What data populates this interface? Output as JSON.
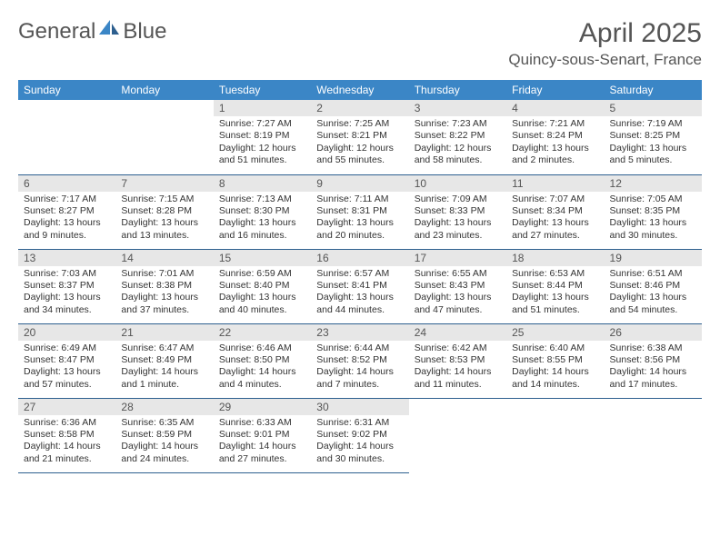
{
  "logo": {
    "word1": "General",
    "word2": "Blue",
    "icon_color": "#3b86c6"
  },
  "title": "April 2025",
  "location": "Quincy-sous-Senart, France",
  "colors": {
    "header_bg": "#3b86c6",
    "header_text": "#ffffff",
    "daynum_bg": "#e7e7e7",
    "border": "#2d5f8f",
    "text": "#333333"
  },
  "weekdays": [
    "Sunday",
    "Monday",
    "Tuesday",
    "Wednesday",
    "Thursday",
    "Friday",
    "Saturday"
  ],
  "weeks": [
    [
      null,
      null,
      {
        "n": "1",
        "sr": "7:27 AM",
        "ss": "8:19 PM",
        "dl": "12 hours and 51 minutes."
      },
      {
        "n": "2",
        "sr": "7:25 AM",
        "ss": "8:21 PM",
        "dl": "12 hours and 55 minutes."
      },
      {
        "n": "3",
        "sr": "7:23 AM",
        "ss": "8:22 PM",
        "dl": "12 hours and 58 minutes."
      },
      {
        "n": "4",
        "sr": "7:21 AM",
        "ss": "8:24 PM",
        "dl": "13 hours and 2 minutes."
      },
      {
        "n": "5",
        "sr": "7:19 AM",
        "ss": "8:25 PM",
        "dl": "13 hours and 5 minutes."
      }
    ],
    [
      {
        "n": "6",
        "sr": "7:17 AM",
        "ss": "8:27 PM",
        "dl": "13 hours and 9 minutes."
      },
      {
        "n": "7",
        "sr": "7:15 AM",
        "ss": "8:28 PM",
        "dl": "13 hours and 13 minutes."
      },
      {
        "n": "8",
        "sr": "7:13 AM",
        "ss": "8:30 PM",
        "dl": "13 hours and 16 minutes."
      },
      {
        "n": "9",
        "sr": "7:11 AM",
        "ss": "8:31 PM",
        "dl": "13 hours and 20 minutes."
      },
      {
        "n": "10",
        "sr": "7:09 AM",
        "ss": "8:33 PM",
        "dl": "13 hours and 23 minutes."
      },
      {
        "n": "11",
        "sr": "7:07 AM",
        "ss": "8:34 PM",
        "dl": "13 hours and 27 minutes."
      },
      {
        "n": "12",
        "sr": "7:05 AM",
        "ss": "8:35 PM",
        "dl": "13 hours and 30 minutes."
      }
    ],
    [
      {
        "n": "13",
        "sr": "7:03 AM",
        "ss": "8:37 PM",
        "dl": "13 hours and 34 minutes."
      },
      {
        "n": "14",
        "sr": "7:01 AM",
        "ss": "8:38 PM",
        "dl": "13 hours and 37 minutes."
      },
      {
        "n": "15",
        "sr": "6:59 AM",
        "ss": "8:40 PM",
        "dl": "13 hours and 40 minutes."
      },
      {
        "n": "16",
        "sr": "6:57 AM",
        "ss": "8:41 PM",
        "dl": "13 hours and 44 minutes."
      },
      {
        "n": "17",
        "sr": "6:55 AM",
        "ss": "8:43 PM",
        "dl": "13 hours and 47 minutes."
      },
      {
        "n": "18",
        "sr": "6:53 AM",
        "ss": "8:44 PM",
        "dl": "13 hours and 51 minutes."
      },
      {
        "n": "19",
        "sr": "6:51 AM",
        "ss": "8:46 PM",
        "dl": "13 hours and 54 minutes."
      }
    ],
    [
      {
        "n": "20",
        "sr": "6:49 AM",
        "ss": "8:47 PM",
        "dl": "13 hours and 57 minutes."
      },
      {
        "n": "21",
        "sr": "6:47 AM",
        "ss": "8:49 PM",
        "dl": "14 hours and 1 minute."
      },
      {
        "n": "22",
        "sr": "6:46 AM",
        "ss": "8:50 PM",
        "dl": "14 hours and 4 minutes."
      },
      {
        "n": "23",
        "sr": "6:44 AM",
        "ss": "8:52 PM",
        "dl": "14 hours and 7 minutes."
      },
      {
        "n": "24",
        "sr": "6:42 AM",
        "ss": "8:53 PM",
        "dl": "14 hours and 11 minutes."
      },
      {
        "n": "25",
        "sr": "6:40 AM",
        "ss": "8:55 PM",
        "dl": "14 hours and 14 minutes."
      },
      {
        "n": "26",
        "sr": "6:38 AM",
        "ss": "8:56 PM",
        "dl": "14 hours and 17 minutes."
      }
    ],
    [
      {
        "n": "27",
        "sr": "6:36 AM",
        "ss": "8:58 PM",
        "dl": "14 hours and 21 minutes."
      },
      {
        "n": "28",
        "sr": "6:35 AM",
        "ss": "8:59 PM",
        "dl": "14 hours and 24 minutes."
      },
      {
        "n": "29",
        "sr": "6:33 AM",
        "ss": "9:01 PM",
        "dl": "14 hours and 27 minutes."
      },
      {
        "n": "30",
        "sr": "6:31 AM",
        "ss": "9:02 PM",
        "dl": "14 hours and 30 minutes."
      },
      null,
      null,
      null
    ]
  ],
  "labels": {
    "sunrise": "Sunrise: ",
    "sunset": "Sunset: ",
    "daylight": "Daylight: "
  }
}
